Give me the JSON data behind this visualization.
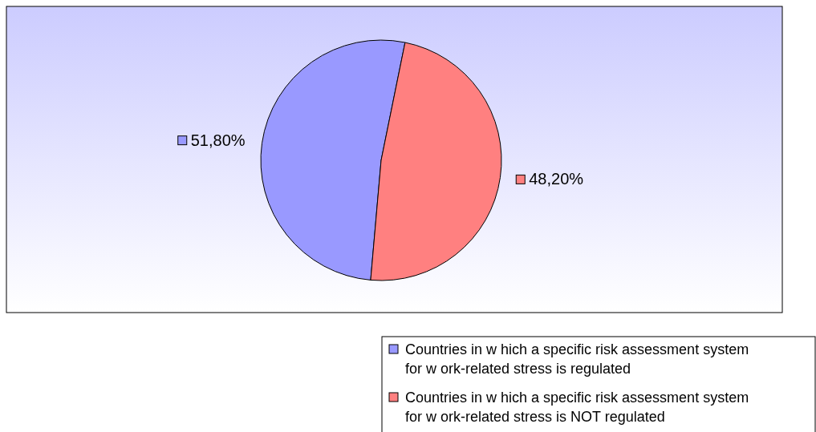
{
  "chart_data": {
    "type": "pie",
    "categories": [
      "Countries in w hich a specific risk assessment system for w ork-related stress is regulated",
      "Countries in w hich a specific risk assessment system for w ork-related stress is NOT regulated"
    ],
    "values": [
      51.8,
      48.2
    ],
    "value_labels": [
      "51,80%",
      "48,20%"
    ],
    "colors": [
      "#9999ff",
      "#ff8080"
    ],
    "legend": "bottom right"
  }
}
